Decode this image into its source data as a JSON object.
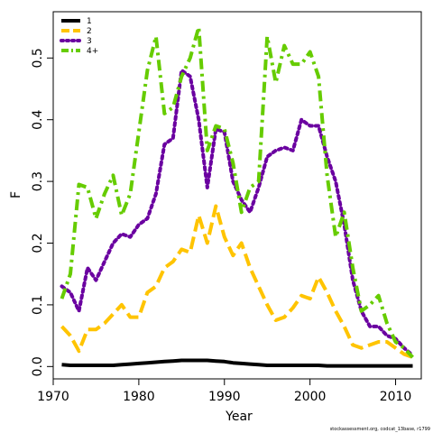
{
  "chart_data": {
    "type": "line",
    "xlabel": "Year",
    "ylabel": "F",
    "xlim": [
      1970,
      2013
    ],
    "ylim": [
      -0.02,
      0.575
    ],
    "xticks": [
      1970,
      1980,
      1990,
      2000,
      2010
    ],
    "yticks": [
      0.0,
      0.1,
      0.2,
      0.3,
      0.4,
      0.5
    ],
    "ytick_labels": [
      "0.0",
      "0.1",
      "0.2",
      "0.3",
      "0.4",
      "0.5"
    ],
    "legend_position": "top-left",
    "footnote": "stockassessment.org, codcat_13base, r1799",
    "series": [
      {
        "name": "1",
        "color": "#000000",
        "dash": "solid",
        "x": [
          1971,
          1972,
          1973,
          1974,
          1975,
          1976,
          1977,
          1978,
          1979,
          1980,
          1981,
          1982,
          1983,
          1984,
          1985,
          1986,
          1987,
          1988,
          1989,
          1990,
          1991,
          1992,
          1993,
          1994,
          1995,
          1996,
          1997,
          1998,
          1999,
          2000,
          2001,
          2002,
          2003,
          2004,
          2005,
          2006,
          2007,
          2008,
          2009,
          2010,
          2011,
          2012
        ],
        "y": [
          0.003,
          0.002,
          0.002,
          0.002,
          0.002,
          0.002,
          0.002,
          0.003,
          0.004,
          0.005,
          0.006,
          0.007,
          0.008,
          0.009,
          0.01,
          0.01,
          0.01,
          0.01,
          0.009,
          0.008,
          0.006,
          0.005,
          0.004,
          0.003,
          0.002,
          0.002,
          0.002,
          0.002,
          0.002,
          0.002,
          0.002,
          0.001,
          0.001,
          0.001,
          0.001,
          0.001,
          0.001,
          0.001,
          0.001,
          0.001,
          0.001,
          0.001
        ]
      },
      {
        "name": "2",
        "color": "#ffc400",
        "dash": "dashed",
        "x": [
          1971,
          1972,
          1973,
          1974,
          1975,
          1976,
          1977,
          1978,
          1979,
          1980,
          1981,
          1982,
          1983,
          1984,
          1985,
          1986,
          1987,
          1988,
          1989,
          1990,
          1991,
          1992,
          1993,
          1994,
          1995,
          1996,
          1997,
          1998,
          1999,
          2000,
          2001,
          2002,
          2003,
          2004,
          2005,
          2006,
          2007,
          2008,
          2009,
          2010,
          2011,
          2012
        ],
        "y": [
          0.065,
          0.05,
          0.025,
          0.06,
          0.06,
          0.07,
          0.085,
          0.1,
          0.08,
          0.08,
          0.12,
          0.13,
          0.16,
          0.17,
          0.19,
          0.185,
          0.245,
          0.2,
          0.26,
          0.21,
          0.18,
          0.2,
          0.16,
          0.13,
          0.1,
          0.075,
          0.08,
          0.095,
          0.115,
          0.11,
          0.145,
          0.12,
          0.09,
          0.065,
          0.035,
          0.03,
          0.035,
          0.04,
          0.04,
          0.03,
          0.02,
          0.015
        ]
      },
      {
        "name": "3",
        "color": "#6a00a0",
        "dash": "dotted",
        "x": [
          1971,
          1972,
          1973,
          1974,
          1975,
          1976,
          1977,
          1978,
          1979,
          1980,
          1981,
          1982,
          1983,
          1984,
          1985,
          1986,
          1987,
          1988,
          1989,
          1990,
          1991,
          1992,
          1993,
          1994,
          1995,
          1996,
          1997,
          1998,
          1999,
          2000,
          2001,
          2002,
          2003,
          2004,
          2005,
          2006,
          2007,
          2008,
          2009,
          2010,
          2011,
          2012
        ],
        "y": [
          0.13,
          0.12,
          0.09,
          0.16,
          0.14,
          0.17,
          0.2,
          0.215,
          0.21,
          0.23,
          0.24,
          0.28,
          0.36,
          0.37,
          0.48,
          0.47,
          0.4,
          0.29,
          0.385,
          0.38,
          0.3,
          0.27,
          0.25,
          0.29,
          0.34,
          0.35,
          0.355,
          0.35,
          0.4,
          0.39,
          0.39,
          0.34,
          0.3,
          0.23,
          0.14,
          0.09,
          0.065,
          0.065,
          0.05,
          0.045,
          0.03,
          0.018
        ]
      },
      {
        "name": "4+",
        "color": "#66cc00",
        "dash": "dashdot",
        "x": [
          1971,
          1972,
          1973,
          1974,
          1975,
          1976,
          1977,
          1978,
          1979,
          1980,
          1981,
          1982,
          1983,
          1984,
          1985,
          1986,
          1987,
          1988,
          1989,
          1990,
          1991,
          1992,
          1993,
          1994,
          1995,
          1996,
          1997,
          1998,
          1999,
          2000,
          2001,
          2002,
          2003,
          2004,
          2005,
          2006,
          2007,
          2008,
          2009,
          2010,
          2011,
          2012
        ],
        "y": [
          0.11,
          0.15,
          0.295,
          0.29,
          0.24,
          0.28,
          0.31,
          0.245,
          0.28,
          0.38,
          0.48,
          0.535,
          0.41,
          0.42,
          0.47,
          0.5,
          0.55,
          0.35,
          0.39,
          0.385,
          0.33,
          0.25,
          0.29,
          0.3,
          0.535,
          0.46,
          0.52,
          0.49,
          0.49,
          0.51,
          0.47,
          0.31,
          0.21,
          0.25,
          0.16,
          0.09,
          0.1,
          0.115,
          0.07,
          0.04,
          0.03,
          0.015
        ]
      }
    ]
  }
}
